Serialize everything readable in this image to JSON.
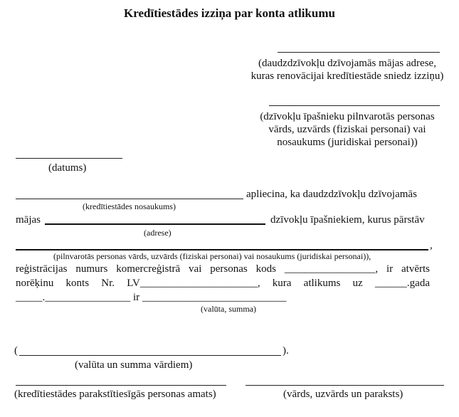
{
  "title": "Kredītiestādes izziņa par konta atlikumu",
  "captions": {
    "house_address": "(daudzdzīvokļu dzīvojamās mājas adrese, kuras renovācijai kredītiestāde sniedz izziņu)",
    "representative": "(dzīvokļu īpašnieku pilnvarotās personas vārds, uzvārds (fiziskai personai) vai nosaukums (juridiskai personai))",
    "date": "(datums)",
    "institution_name": "(kredītiestādes nosaukums)",
    "address": "(adrese)",
    "person": "(pilnvarotās personas vārds, uzvārds (fiziskai personai) vai nosaukums (juridiskai personai)),",
    "currency_amount": "(valūta, summa)",
    "currency_amount_words": "(valūta un summa vārdiem)",
    "signatory_position": "(kredītiestādes parakstītiesīgās personas amats)",
    "signature": "(vārds, uzvārds un paraksts)"
  },
  "body": {
    "line1_text": "apliecina, ka daudzdzīvokļu dzīvojamās",
    "line2_prefix": "mājas",
    "line2_text": "dzīvokļu īpašniekiem, kurus pārstāv",
    "line3_comma": ",",
    "line4": "reģistrācijas numurs komercreģistrā vai personas kods _________________, ir atvērts",
    "line5": "norēķinu konts Nr. LV______________________, kura atlikums uz ______.gada",
    "line6": "_____.________________ ir ___________________________",
    "words_open": "(",
    "words_close": ")."
  }
}
